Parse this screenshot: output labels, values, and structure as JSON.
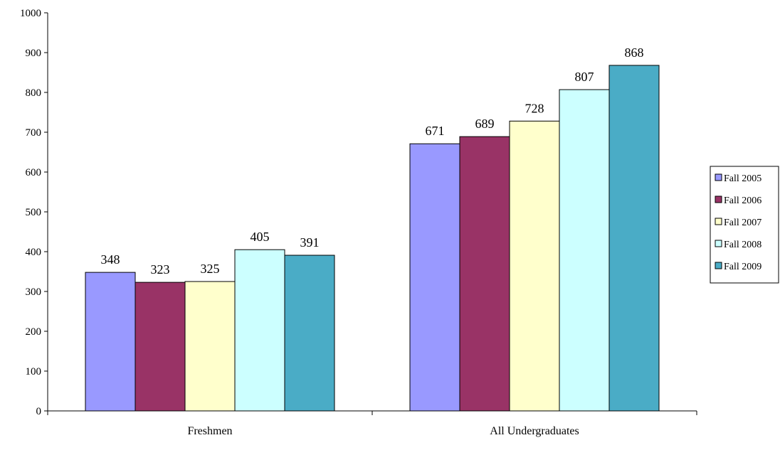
{
  "chart_data": {
    "type": "bar",
    "categories": [
      "Freshmen",
      "All Undergraduates"
    ],
    "series": [
      {
        "name": "Fall 2005",
        "values": [
          348,
          671
        ],
        "color": "#9999ff"
      },
      {
        "name": "Fall 2006",
        "values": [
          323,
          689
        ],
        "color": "#993366"
      },
      {
        "name": "Fall 2007",
        "values": [
          325,
          728
        ],
        "color": "#ffffcc"
      },
      {
        "name": "Fall 2008",
        "values": [
          405,
          807
        ],
        "color": "#ccffff"
      },
      {
        "name": "Fall 2009",
        "values": [
          391,
          868
        ],
        "color": "#4aacc6"
      }
    ],
    "y_ticks": [
      "0",
      "100",
      "200",
      "300",
      "400",
      "500",
      "600",
      "700",
      "800",
      "900",
      "1000"
    ],
    "ylim": [
      0,
      1000
    ],
    "grid": false,
    "legend_position": "right",
    "data_labels": true
  }
}
